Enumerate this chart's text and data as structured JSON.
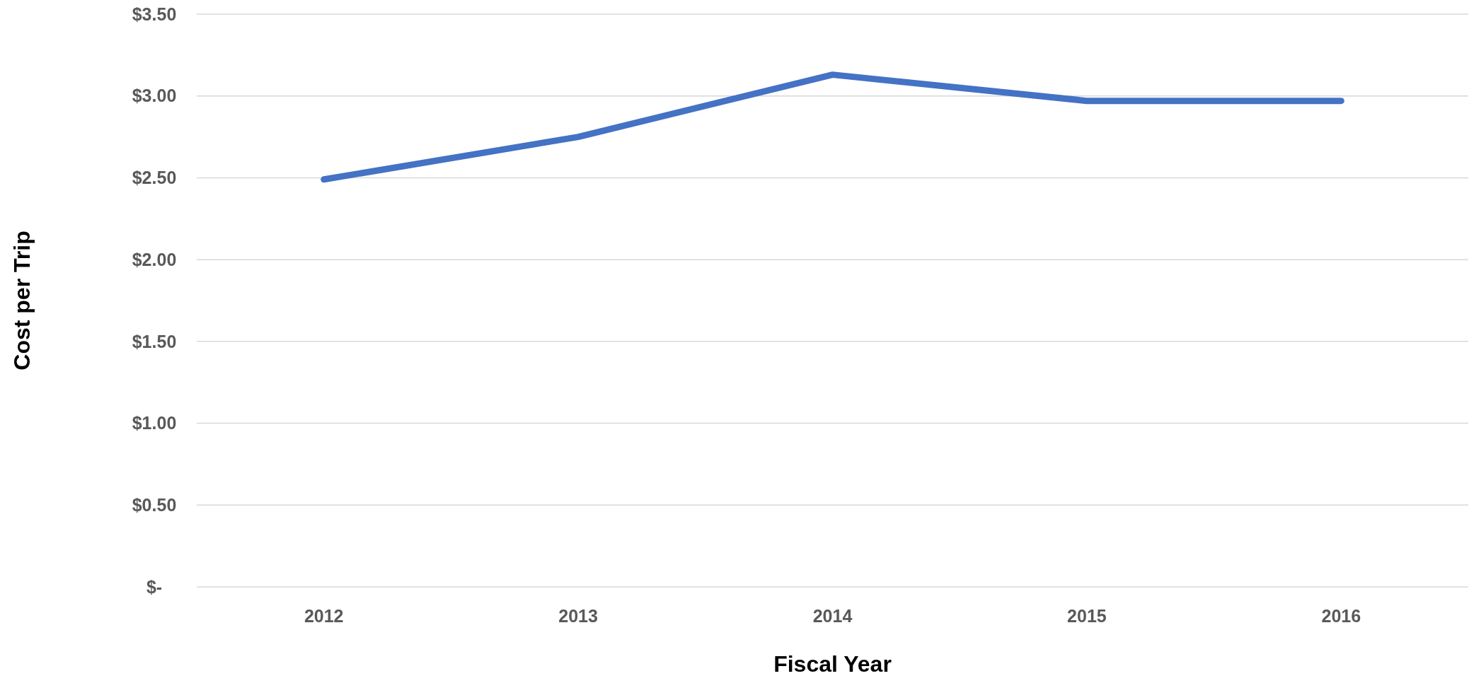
{
  "chart_data": {
    "type": "line",
    "xlabel": "Fiscal Year",
    "ylabel": "Cost per Trip",
    "categories": [
      "2012",
      "2013",
      "2014",
      "2015",
      "2016"
    ],
    "series": [
      {
        "color": "#4472c4",
        "values": [
          2.49,
          2.75,
          3.13,
          2.97,
          2.97
        ]
      }
    ],
    "ylim": [
      0,
      3.5
    ],
    "yticks": [
      {
        "value": 0,
        "label": "$-"
      },
      {
        "value": 0.5,
        "label": "$0.50"
      },
      {
        "value": 1,
        "label": "$1.00"
      },
      {
        "value": 1.5,
        "label": "$1.50"
      },
      {
        "value": 2,
        "label": "$2.00"
      },
      {
        "value": 2.5,
        "label": "$2.50"
      },
      {
        "value": 3,
        "label": "$3.00"
      },
      {
        "value": 3.5,
        "label": "$3.50"
      }
    ],
    "grid": "y",
    "marker": "none",
    "line_style": "solid"
  }
}
